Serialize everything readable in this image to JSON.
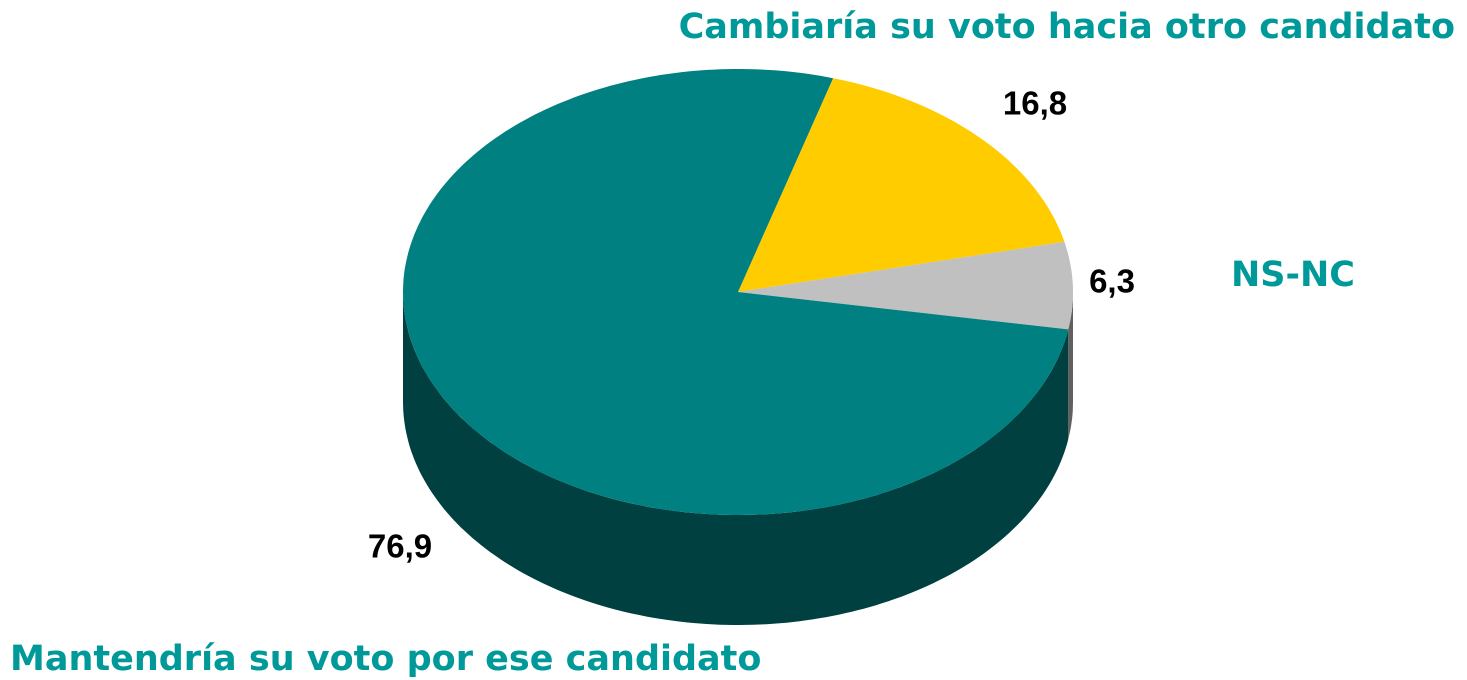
{
  "chart_data": {
    "type": "pie3d",
    "categories": [
      "Cambiaría su voto hacia otro candidato",
      "NS-NC",
      "Mantendría su voto por ese candidato"
    ],
    "values": [
      16.8,
      6.3,
      76.9
    ],
    "value_labels": [
      "16,8",
      "6,3",
      "76,9"
    ],
    "colors": [
      "#ffcc00",
      "#c0c0c0",
      "#008080"
    ]
  }
}
